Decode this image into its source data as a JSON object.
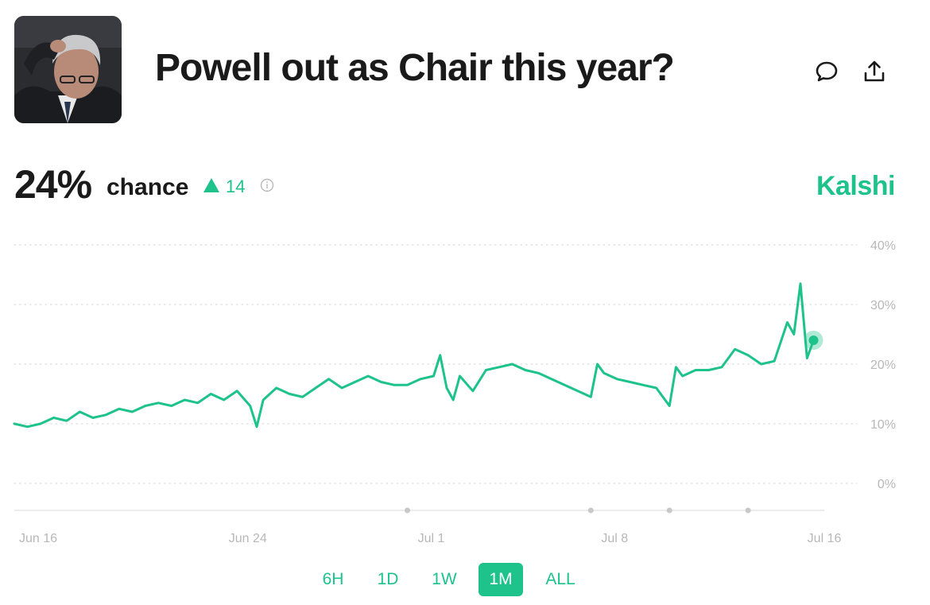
{
  "header": {
    "title": "Powell out as Chair this year?",
    "avatar_icon": "person-portrait",
    "comment_icon": "comment-bubble-icon",
    "share_icon": "share-upload-icon"
  },
  "summary": {
    "probability": "24%",
    "probability_label": "chance",
    "change_value": "14",
    "change_direction": "up",
    "brand": "Kalshi"
  },
  "colors": {
    "accent": "#1ec28b",
    "text": "#1a1a1a",
    "muted": "#b8b8b8",
    "grid": "#dcdcdc"
  },
  "ranges": [
    {
      "label": "6H",
      "active": false
    },
    {
      "label": "1D",
      "active": false
    },
    {
      "label": "1W",
      "active": false
    },
    {
      "label": "1M",
      "active": true
    },
    {
      "label": "ALL",
      "active": false
    }
  ],
  "chart_data": {
    "type": "line",
    "ylim": [
      0,
      40
    ],
    "y_ticks": [
      {
        "value": 0,
        "label": "0%"
      },
      {
        "value": 10,
        "label": "10%"
      },
      {
        "value": 20,
        "label": "20%"
      },
      {
        "value": 30,
        "label": "30%"
      },
      {
        "value": 40,
        "label": "40%"
      }
    ],
    "x_range": [
      "2025-06-16",
      "2025-07-17"
    ],
    "x_ticks": [
      {
        "x": "2025-06-16",
        "label": "Jun 16"
      },
      {
        "x": "2025-06-24",
        "label": "Jun 24"
      },
      {
        "x": "2025-07-01",
        "label": "Jul 1"
      },
      {
        "x": "2025-07-08",
        "label": "Jul 8"
      },
      {
        "x": "2025-07-16",
        "label": "Jul 16"
      }
    ],
    "event_markers": [
      "2025-07-01",
      "2025-07-08",
      "2025-07-11",
      "2025-07-14"
    ],
    "grid": true,
    "y_axis_side": "right",
    "series": [
      {
        "color": "#1ec28b",
        "points": [
          [
            "2025-06-16",
            10
          ],
          [
            "2025-06-16T12",
            9.5
          ],
          [
            "2025-06-17",
            10
          ],
          [
            "2025-06-17T12",
            11
          ],
          [
            "2025-06-18",
            10.5
          ],
          [
            "2025-06-18T12",
            12
          ],
          [
            "2025-06-19",
            11
          ],
          [
            "2025-06-19T12",
            11.5
          ],
          [
            "2025-06-20",
            12.5
          ],
          [
            "2025-06-20T12",
            12
          ],
          [
            "2025-06-21",
            13
          ],
          [
            "2025-06-21T12",
            13.5
          ],
          [
            "2025-06-22",
            13
          ],
          [
            "2025-06-22T12",
            14
          ],
          [
            "2025-06-23",
            13.5
          ],
          [
            "2025-06-23T12",
            15
          ],
          [
            "2025-06-24",
            14
          ],
          [
            "2025-06-24T12",
            15.5
          ],
          [
            "2025-06-25",
            13
          ],
          [
            "2025-06-25T06",
            9.5
          ],
          [
            "2025-06-25T12",
            14
          ],
          [
            "2025-06-26",
            16
          ],
          [
            "2025-06-26T12",
            15
          ],
          [
            "2025-06-27",
            14.5
          ],
          [
            "2025-06-27T12",
            16
          ],
          [
            "2025-06-28",
            17.5
          ],
          [
            "2025-06-28T12",
            16
          ],
          [
            "2025-06-29",
            17
          ],
          [
            "2025-06-29T12",
            18
          ],
          [
            "2025-06-30",
            17
          ],
          [
            "2025-06-30T12",
            16.5
          ],
          [
            "2025-07-01",
            16.5
          ],
          [
            "2025-07-01T12",
            17.5
          ],
          [
            "2025-07-02",
            18
          ],
          [
            "2025-07-02T06",
            21.5
          ],
          [
            "2025-07-02T12",
            16
          ],
          [
            "2025-07-02T18",
            14
          ],
          [
            "2025-07-03",
            18
          ],
          [
            "2025-07-03T12",
            15.5
          ],
          [
            "2025-07-04",
            19
          ],
          [
            "2025-07-04T12",
            19.5
          ],
          [
            "2025-07-05",
            20
          ],
          [
            "2025-07-05T12",
            19
          ],
          [
            "2025-07-06",
            18.5
          ],
          [
            "2025-07-06T12",
            17.5
          ],
          [
            "2025-07-07",
            16.5
          ],
          [
            "2025-07-07T12",
            15.5
          ],
          [
            "2025-07-08",
            14.5
          ],
          [
            "2025-07-08T06",
            20
          ],
          [
            "2025-07-08T12",
            18.5
          ],
          [
            "2025-07-09",
            17.5
          ],
          [
            "2025-07-09T12",
            17
          ],
          [
            "2025-07-10",
            16.5
          ],
          [
            "2025-07-10T12",
            16
          ],
          [
            "2025-07-11",
            13
          ],
          [
            "2025-07-11T06",
            19.5
          ],
          [
            "2025-07-11T12",
            18
          ],
          [
            "2025-07-12",
            19
          ],
          [
            "2025-07-12T12",
            19
          ],
          [
            "2025-07-13",
            19.5
          ],
          [
            "2025-07-13T12",
            22.5
          ],
          [
            "2025-07-14",
            21.5
          ],
          [
            "2025-07-14T12",
            20
          ],
          [
            "2025-07-15",
            20.5
          ],
          [
            "2025-07-15T12",
            27
          ],
          [
            "2025-07-15T18",
            25
          ],
          [
            "2025-07-16",
            33.5
          ],
          [
            "2025-07-16T06",
            21
          ],
          [
            "2025-07-16T12",
            24
          ]
        ]
      }
    ],
    "current_value": 24
  }
}
